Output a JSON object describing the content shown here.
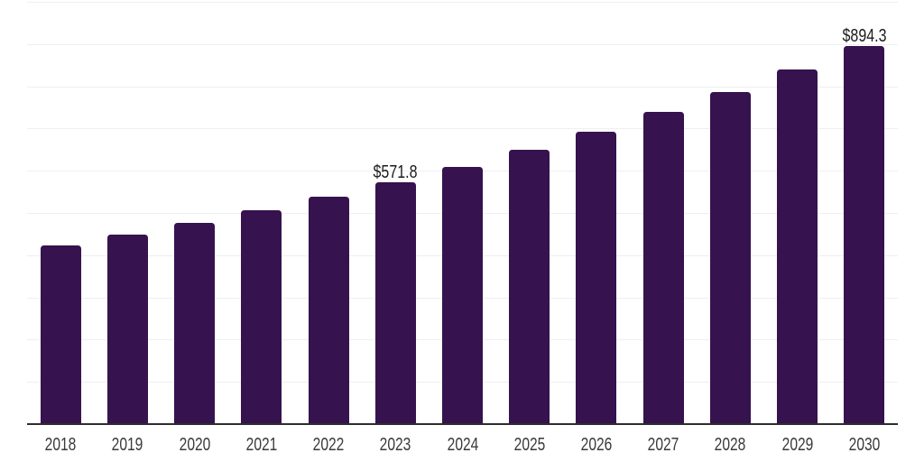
{
  "page": {
    "background_color": "#FFFFFF"
  },
  "chart_data": {
    "type": "bar",
    "title": "",
    "xlabel": "",
    "ylabel": "",
    "categories": [
      "2018",
      "2019",
      "2020",
      "2021",
      "2022",
      "2023",
      "2024",
      "2025",
      "2026",
      "2027",
      "2028",
      "2029",
      "2030"
    ],
    "values": [
      423.3,
      449.6,
      477.5,
      507.2,
      538.6,
      571.8,
      609.5,
      649.7,
      692.6,
      738.3,
      787.0,
      839.0,
      894.3
    ],
    "annotated_points": [
      {
        "category": "2023",
        "label": "$571.8"
      },
      {
        "category": "2030",
        "label": "$894.3"
      }
    ],
    "ylim": [
      0,
      1000
    ],
    "gridline_step": 100,
    "grid": "horizontal-only",
    "y_tick_labels_visible": false,
    "legend_position": "none",
    "colors": {
      "bar": "#36124E",
      "gridline": "#EFEEF2",
      "axis_line": "#2D2D2D",
      "tick_label_text": "#3A3A3A",
      "value_label_text": "#1B1B1B",
      "background": "#FFFFFF"
    }
  }
}
